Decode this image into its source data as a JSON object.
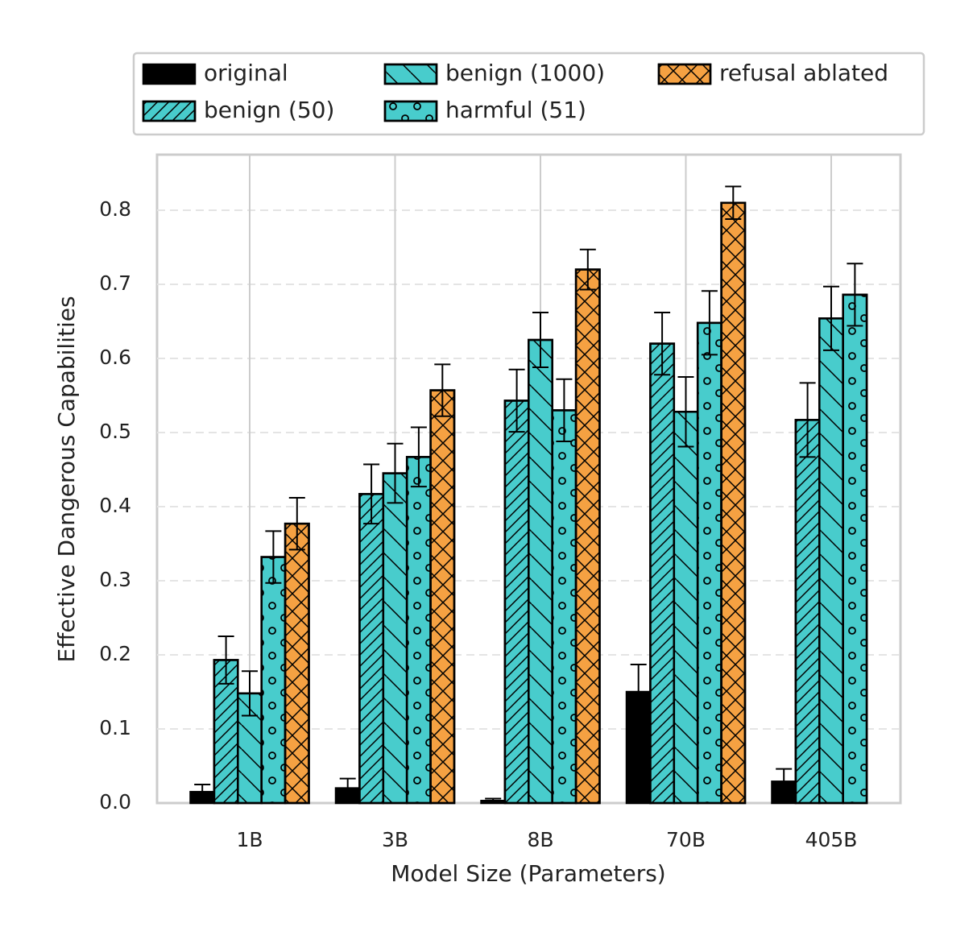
{
  "chart_data": {
    "type": "bar",
    "xlabel": "Model Size (Parameters)",
    "ylabel": "Effective Dangerous Capabilities",
    "categories": [
      "1B",
      "3B",
      "8B",
      "70B",
      "405B"
    ],
    "ylim": [
      0,
      0.875
    ],
    "yticks": [
      {
        "value": 0,
        "label": "0.0"
      },
      0.1,
      0.2,
      0.3,
      0.4,
      0.5,
      0.6,
      0.7,
      0.8
    ],
    "grid": true,
    "series": [
      {
        "name": "original",
        "color": "#000000",
        "hatch": null,
        "values": [
          0.015,
          0.02,
          0.003,
          0.15,
          0.029
        ],
        "errors": [
          0.01,
          0.013,
          0.003,
          0.037,
          0.017
        ]
      },
      {
        "name": "benign (50)",
        "color": "#48cccc",
        "hatch": "///",
        "values": [
          0.193,
          0.417,
          0.543,
          0.62,
          0.517
        ],
        "errors": [
          0.032,
          0.04,
          0.042,
          0.042,
          0.05
        ]
      },
      {
        "name": "benign (1000)",
        "color": "#48cccc",
        "hatch": "\\",
        "values": [
          0.148,
          0.445,
          0.625,
          0.528,
          0.654
        ],
        "errors": [
          0.03,
          0.04,
          0.037,
          0.047,
          0.043
        ]
      },
      {
        "name": "harmful (51)",
        "color": "#48cccc",
        "hatch": "o",
        "values": [
          0.332,
          0.467,
          0.53,
          0.648,
          0.686
        ],
        "errors": [
          0.035,
          0.04,
          0.042,
          0.043,
          0.042
        ]
      },
      {
        "name": "refusal ablated",
        "color": "#f5a142",
        "hatch": "x",
        "values": [
          0.377,
          0.557,
          0.72,
          0.81,
          null
        ],
        "errors": [
          0.035,
          0.035,
          0.027,
          0.022,
          null
        ]
      }
    ]
  }
}
